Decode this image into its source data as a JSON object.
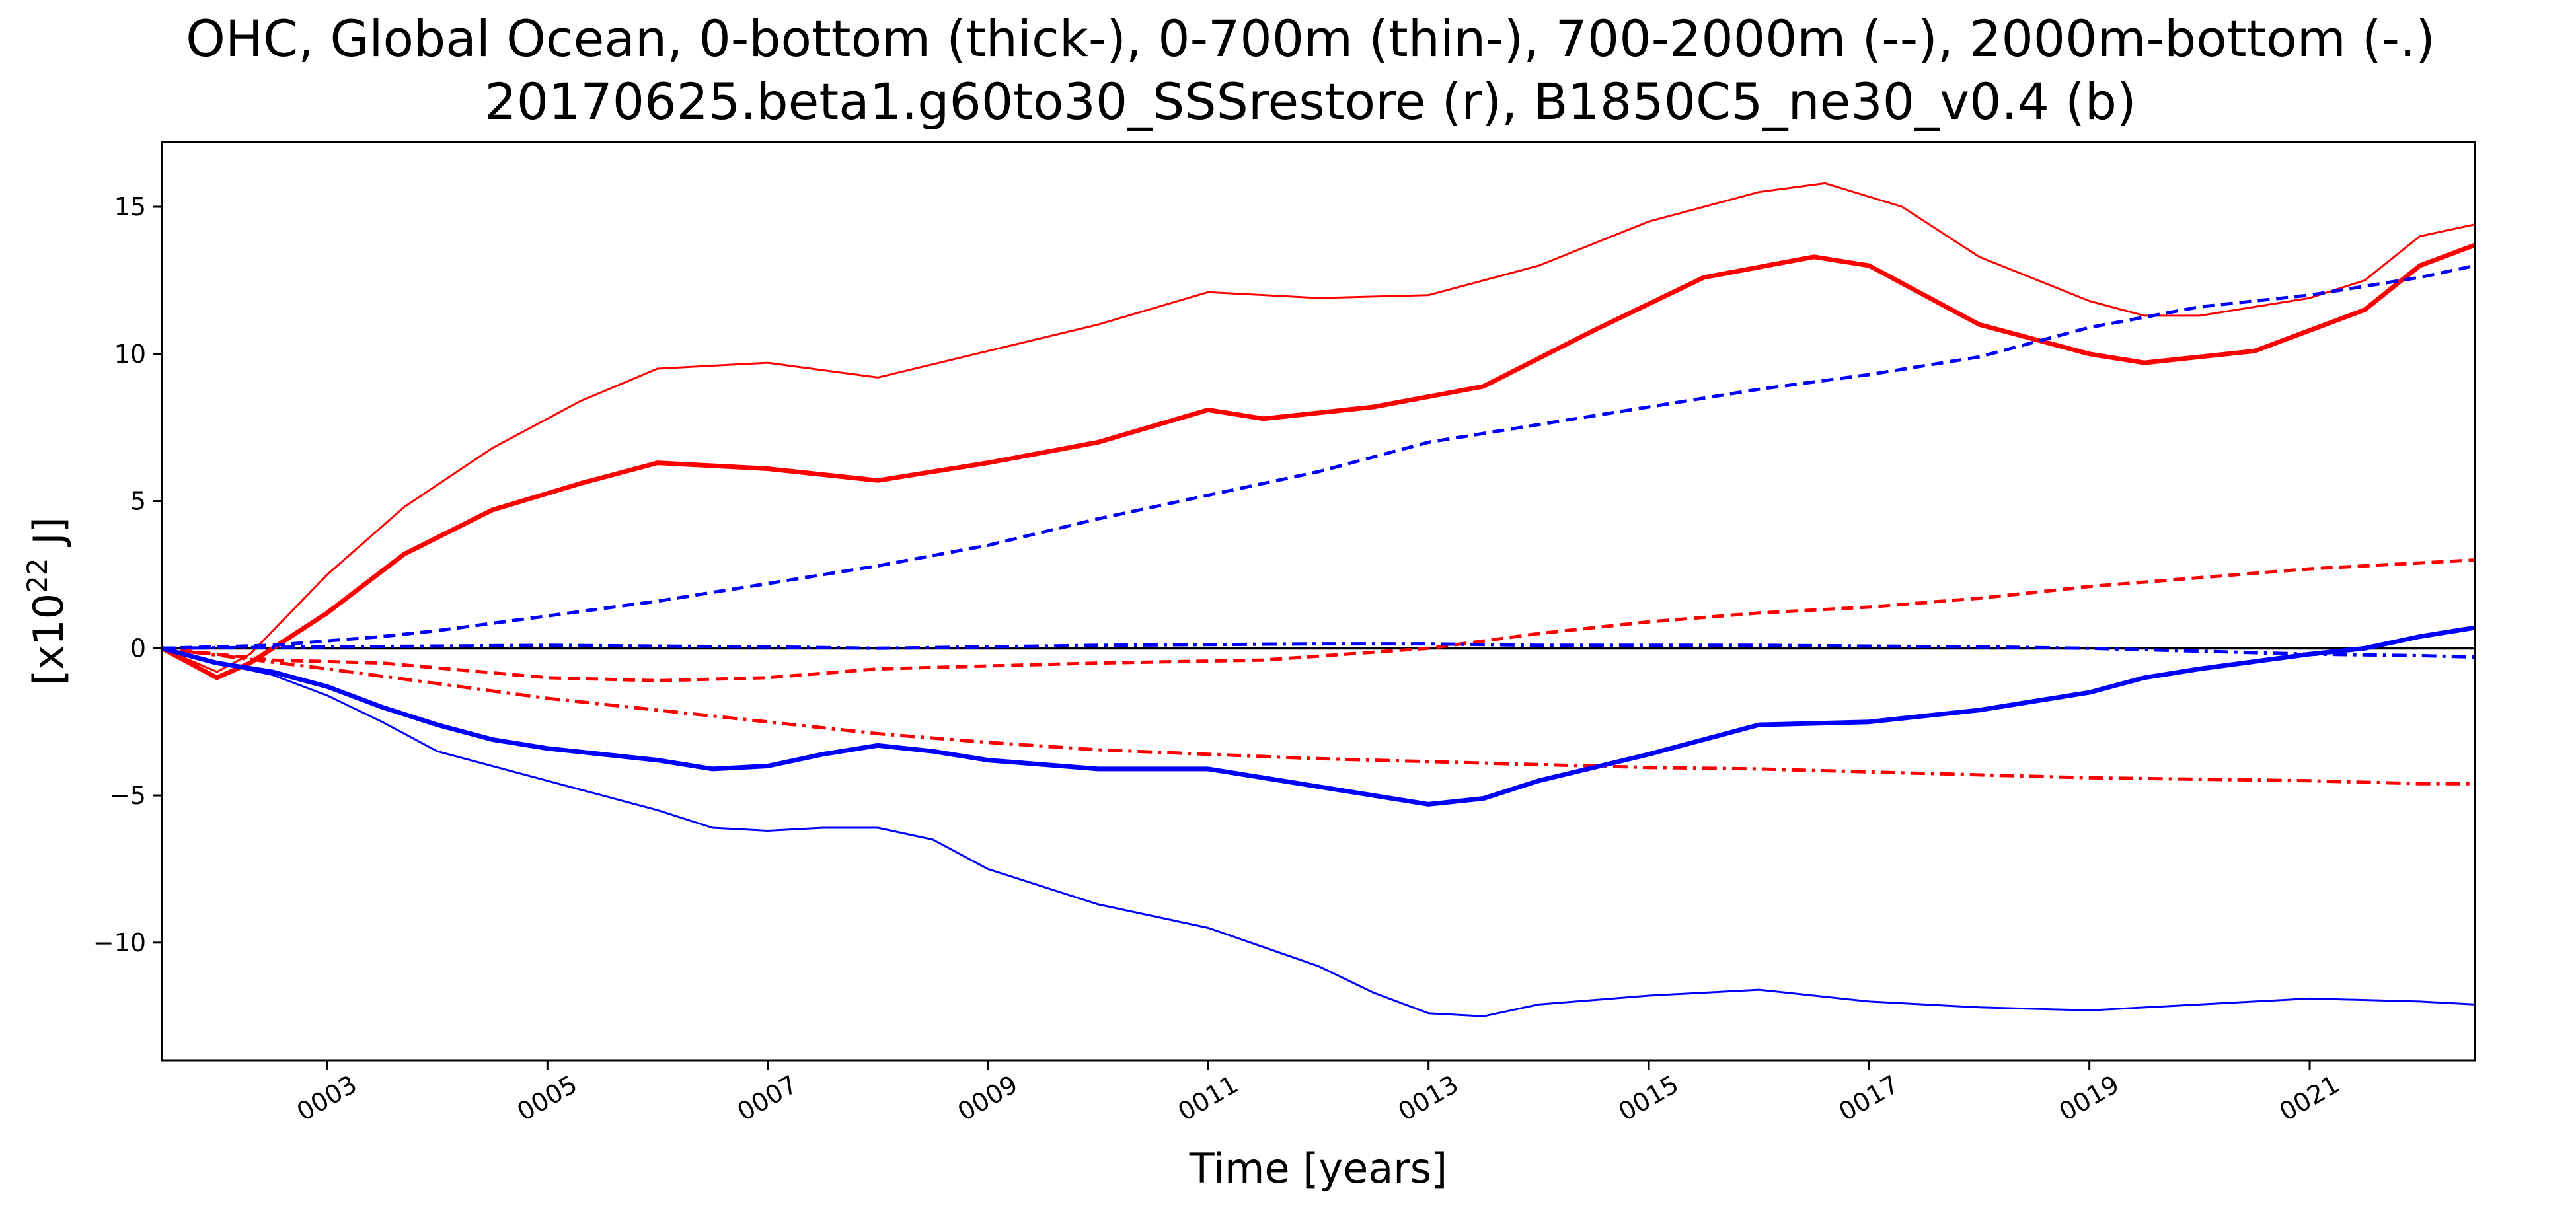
{
  "chart_data": {
    "type": "line",
    "title": "OHC, Global Ocean, 0-bottom (thick-), 0-700m (thin-), 700-2000m (--), 2000m-bottom (-.)",
    "subtitle": "20170625.beta1.g60to30_SSSrestore (r), B1850C5_ne30_v0.4 (b)",
    "xlabel": "Time [years]",
    "ylabel_prefix": "[x10",
    "ylabel_exp": "22",
    "ylabel_suffix": " J]",
    "xlim": [
      1.5,
      22.5
    ],
    "ylim": [
      -14,
      17.2
    ],
    "x_ticks": [
      {
        "value": 3,
        "label": "0003"
      },
      {
        "value": 5,
        "label": "0005"
      },
      {
        "value": 7,
        "label": "0007"
      },
      {
        "value": 9,
        "label": "0009"
      },
      {
        "value": 11,
        "label": "0011"
      },
      {
        "value": 13,
        "label": "0013"
      },
      {
        "value": 15,
        "label": "0015"
      },
      {
        "value": 17,
        "label": "0017"
      },
      {
        "value": 19,
        "label": "0019"
      },
      {
        "value": 21,
        "label": "0021"
      }
    ],
    "y_ticks": [
      {
        "value": 15,
        "label": "15"
      },
      {
        "value": 10,
        "label": "10"
      },
      {
        "value": 5,
        "label": "5"
      },
      {
        "value": 0,
        "label": "0"
      },
      {
        "value": -5,
        "label": "−5"
      },
      {
        "value": -10,
        "label": "−10"
      }
    ],
    "zero_line": 0,
    "series": [
      {
        "name": "r 0-bottom",
        "color": "#ff0000",
        "style": "solid",
        "weight": "thick",
        "x": [
          1.5,
          2.0,
          2.3,
          3.0,
          3.7,
          4.5,
          5.3,
          6.0,
          7.0,
          8.0,
          9.0,
          10.0,
          11.0,
          11.5,
          12.5,
          13.5,
          14.5,
          15.5,
          16.5,
          17.0,
          18.0,
          19.0,
          19.5,
          20.5,
          21.5,
          22.0,
          22.5
        ],
        "y": [
          0.0,
          -1.0,
          -0.5,
          1.2,
          3.2,
          4.7,
          5.6,
          6.3,
          6.1,
          5.7,
          6.3,
          7.0,
          8.1,
          7.8,
          8.2,
          8.9,
          10.8,
          12.6,
          13.3,
          13.0,
          11.0,
          10.0,
          9.7,
          10.1,
          11.5,
          13.0,
          13.7
        ]
      },
      {
        "name": "r 0-700m",
        "color": "#ff0000",
        "style": "solid",
        "weight": "thin",
        "x": [
          1.5,
          2.0,
          2.3,
          3.0,
          3.7,
          4.5,
          5.3,
          6.0,
          7.0,
          8.0,
          9.0,
          10.0,
          11.0,
          12.0,
          13.0,
          14.0,
          15.0,
          16.0,
          16.6,
          17.3,
          18.0,
          19.0,
          19.5,
          20.0,
          21.0,
          21.5,
          22.0,
          22.5
        ],
        "y": [
          0.0,
          -0.8,
          -0.2,
          2.5,
          4.8,
          6.8,
          8.4,
          9.5,
          9.7,
          9.2,
          10.1,
          11.0,
          12.1,
          11.9,
          12.0,
          13.0,
          14.5,
          15.5,
          15.8,
          15.0,
          13.3,
          11.8,
          11.3,
          11.3,
          11.9,
          12.5,
          14.0,
          14.4
        ]
      },
      {
        "name": "r 700-2000m",
        "color": "#ff0000",
        "style": "dashed",
        "weight": "medium",
        "x": [
          1.5,
          2.5,
          3.5,
          5.0,
          6.0,
          7.0,
          8.0,
          9.0,
          10.0,
          11.5,
          13.0,
          14.0,
          15.0,
          16.0,
          17.0,
          18.0,
          19.0,
          20.0,
          21.0,
          22.0,
          22.5
        ],
        "y": [
          0.0,
          -0.4,
          -0.5,
          -1.0,
          -1.1,
          -1.0,
          -0.7,
          -0.6,
          -0.5,
          -0.4,
          0.0,
          0.5,
          0.9,
          1.2,
          1.4,
          1.7,
          2.1,
          2.4,
          2.7,
          2.9,
          3.0
        ]
      },
      {
        "name": "r 2000m-bottom",
        "color": "#ff0000",
        "style": "dashdot",
        "weight": "medium",
        "x": [
          1.5,
          3.0,
          4.0,
          5.0,
          6.0,
          7.0,
          8.0,
          9.0,
          10.0,
          11.0,
          12.0,
          13.0,
          14.0,
          15.0,
          16.0,
          17.0,
          18.0,
          19.0,
          20.0,
          21.0,
          22.0,
          22.5
        ],
        "y": [
          0.0,
          -0.7,
          -1.2,
          -1.7,
          -2.1,
          -2.5,
          -2.9,
          -3.2,
          -3.45,
          -3.6,
          -3.75,
          -3.85,
          -3.95,
          -4.05,
          -4.1,
          -4.2,
          -4.3,
          -4.4,
          -4.45,
          -4.5,
          -4.6,
          -4.6
        ]
      },
      {
        "name": "b 0-bottom",
        "color": "#0000ff",
        "style": "solid",
        "weight": "thick",
        "x": [
          1.5,
          2.0,
          2.5,
          3.0,
          3.5,
          4.0,
          4.5,
          5.0,
          6.0,
          6.5,
          7.0,
          7.5,
          8.0,
          8.5,
          9.0,
          10.0,
          11.0,
          12.0,
          13.0,
          13.5,
          14.0,
          15.0,
          16.0,
          17.0,
          18.0,
          19.0,
          19.5,
          20.0,
          21.0,
          21.5,
          22.0,
          22.5
        ],
        "y": [
          0.0,
          -0.5,
          -0.8,
          -1.3,
          -2.0,
          -2.6,
          -3.1,
          -3.4,
          -3.8,
          -4.1,
          -4.0,
          -3.6,
          -3.3,
          -3.5,
          -3.8,
          -4.1,
          -4.1,
          -4.7,
          -5.3,
          -5.1,
          -4.5,
          -3.6,
          -2.6,
          -2.5,
          -2.1,
          -1.5,
          -1.0,
          -0.7,
          -0.2,
          0.0,
          0.4,
          0.7
        ]
      },
      {
        "name": "b 0-700m",
        "color": "#0000ff",
        "style": "solid",
        "weight": "thin",
        "x": [
          1.5,
          2.0,
          2.5,
          3.0,
          3.5,
          4.0,
          5.0,
          6.0,
          6.5,
          7.0,
          7.5,
          8.0,
          8.5,
          9.0,
          10.0,
          11.0,
          12.0,
          12.5,
          13.0,
          13.5,
          14.0,
          15.0,
          16.0,
          17.0,
          18.0,
          19.0,
          20.0,
          21.0,
          22.0,
          22.5
        ],
        "y": [
          0.0,
          -0.5,
          -0.9,
          -1.6,
          -2.5,
          -3.5,
          -4.5,
          -5.5,
          -6.1,
          -6.2,
          -6.1,
          -6.1,
          -6.5,
          -7.5,
          -8.7,
          -9.5,
          -10.8,
          -11.7,
          -12.4,
          -12.5,
          -12.1,
          -11.8,
          -11.6,
          -12.0,
          -12.2,
          -12.3,
          -12.1,
          -11.9,
          -12.0,
          -12.1
        ]
      },
      {
        "name": "b 700-2000m",
        "color": "#0000ff",
        "style": "dashed",
        "weight": "medium",
        "x": [
          1.5,
          2.5,
          3.5,
          4.0,
          5.0,
          6.0,
          7.0,
          8.0,
          9.0,
          10.0,
          11.0,
          12.0,
          13.0,
          14.0,
          15.0,
          16.0,
          17.0,
          18.0,
          19.0,
          20.0,
          21.0,
          22.0,
          22.5
        ],
        "y": [
          0.0,
          0.1,
          0.4,
          0.6,
          1.1,
          1.6,
          2.2,
          2.8,
          3.5,
          4.4,
          5.2,
          6.0,
          7.0,
          7.6,
          8.2,
          8.8,
          9.3,
          9.9,
          10.9,
          11.6,
          12.0,
          12.6,
          13.0
        ]
      },
      {
        "name": "b 2000m-bottom",
        "color": "#0000ff",
        "style": "dashdot",
        "weight": "medium",
        "x": [
          1.5,
          3.0,
          5.0,
          7.0,
          8.0,
          10.0,
          12.0,
          13.0,
          14.0,
          16.0,
          18.0,
          19.0,
          20.0,
          21.0,
          22.0,
          22.5
        ],
        "y": [
          0.0,
          0.05,
          0.1,
          0.05,
          0.0,
          0.1,
          0.15,
          0.15,
          0.1,
          0.1,
          0.05,
          0.0,
          -0.1,
          -0.2,
          -0.25,
          -0.3
        ]
      }
    ]
  }
}
